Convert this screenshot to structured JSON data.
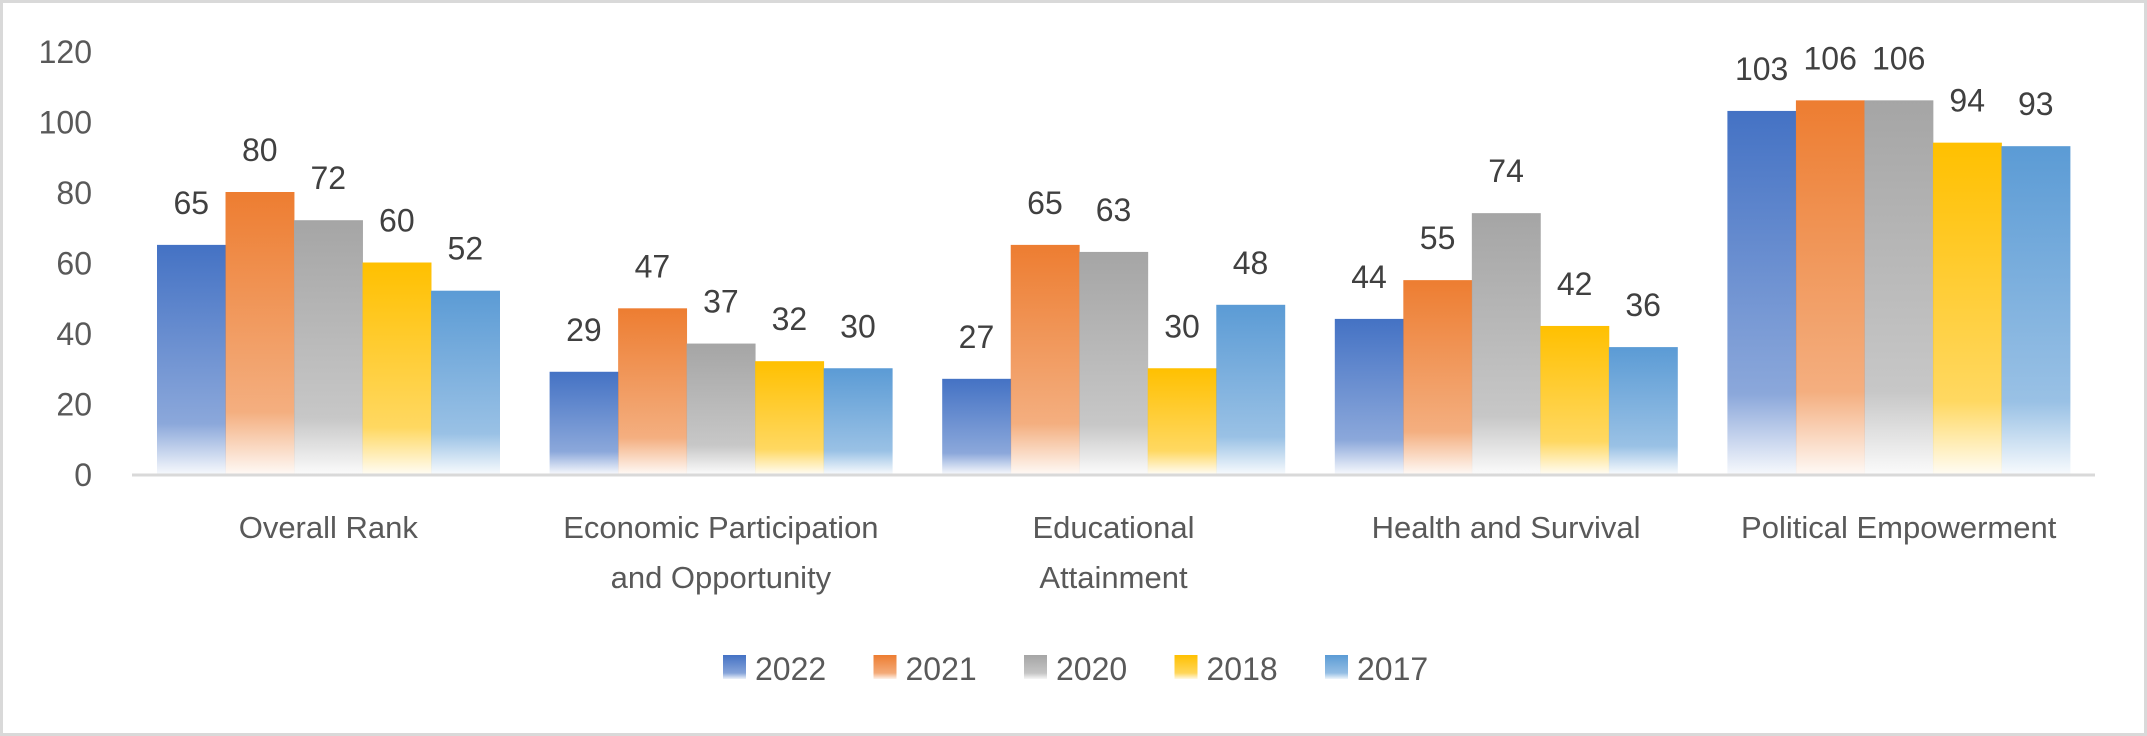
{
  "chart_data": {
    "type": "bar",
    "title": "",
    "xlabel": "",
    "ylabel": "",
    "ylim": [
      0,
      120
    ],
    "yticks": [
      "0",
      "20",
      "40",
      "60",
      "80",
      "100",
      "120"
    ],
    "grid": false,
    "legend_position": "bottom",
    "categories": [
      [
        "Overall Rank"
      ],
      [
        "Economic Participation",
        "and Opportunity"
      ],
      [
        "Educational",
        "Attainment"
      ],
      [
        "Health and Survival"
      ],
      [
        "Political Empowerment"
      ]
    ],
    "series": [
      {
        "name": "2022",
        "color": "#4472C4",
        "values": [
          65,
          29,
          27,
          44,
          103
        ]
      },
      {
        "name": "2021",
        "color": "#ED7D31",
        "values": [
          80,
          47,
          65,
          55,
          106
        ]
      },
      {
        "name": "2020",
        "color": "#A5A5A5",
        "values": [
          72,
          37,
          63,
          74,
          106
        ]
      },
      {
        "name": "2018",
        "color": "#FFC000",
        "values": [
          60,
          32,
          30,
          42,
          94
        ]
      },
      {
        "name": "2017",
        "color": "#5B9BD5",
        "values": [
          52,
          30,
          48,
          36,
          93
        ]
      }
    ],
    "data_labels": true
  },
  "colors": {
    "border": "#D9D9D9",
    "axis_line": "#D9D9D9",
    "tick_text": "#595959",
    "label_text": "#404040"
  }
}
